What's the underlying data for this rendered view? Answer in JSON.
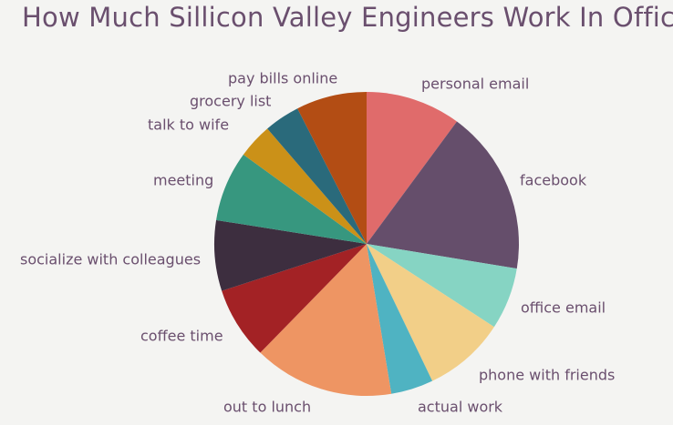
{
  "chart_data": {
    "type": "pie",
    "title": "How Much Sillicon Valley Engineers Work In Office?",
    "start": "top, clockwise",
    "legend": "none (direct labels)",
    "slices": [
      {
        "label": "personal email",
        "value": 10.1,
        "color": "#e06b6b"
      },
      {
        "label": "facebook",
        "value": 17.5,
        "color": "#654e6b"
      },
      {
        "label": "office email",
        "value": 6.6,
        "color": "#86d4c3"
      },
      {
        "label": "phone with friends",
        "value": 8.7,
        "color": "#f2cf88"
      },
      {
        "label": "actual work",
        "value": 4.5,
        "color": "#4fb3c2"
      },
      {
        "label": "out to lunch",
        "value": 14.9,
        "color": "#ee9563"
      },
      {
        "label": "coffee time",
        "value": 7.7,
        "color": "#a32225"
      },
      {
        "label": "socialize with colleagues",
        "value": 7.5,
        "color": "#3d2e3f"
      },
      {
        "label": "meeting",
        "value": 7.5,
        "color": "#37977f"
      },
      {
        "label": "talk to wife",
        "value": 3.7,
        "color": "#cb9118"
      },
      {
        "label": "grocery list",
        "value": 3.8,
        "color": "#2a6a7b"
      },
      {
        "label": "pay bills online",
        "value": 7.5,
        "color": "#b34d14"
      }
    ]
  }
}
